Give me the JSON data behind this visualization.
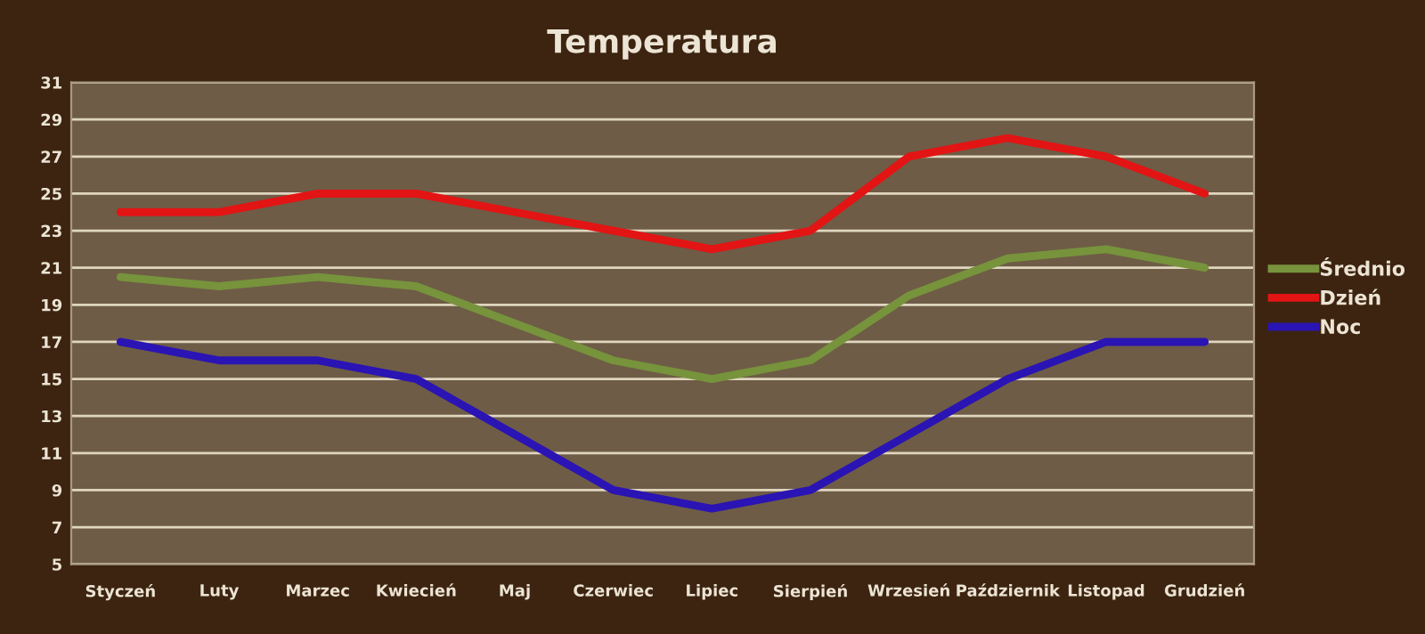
{
  "chart_data": {
    "type": "line",
    "title": "Temperatura",
    "categories": [
      "Styczeń",
      "Luty",
      "Marzec",
      "Kwiecień",
      "Maj",
      "Czerwiec",
      "Lipiec",
      "Sierpień",
      "Wrzesień",
      "Październik",
      "Listopad",
      "Grudzień"
    ],
    "series": [
      {
        "name": "Średnio",
        "color": "#77933c",
        "values": [
          20.5,
          20,
          20.5,
          20,
          18,
          16,
          15,
          16,
          19.5,
          21.5,
          22,
          21
        ]
      },
      {
        "name": "Dzień",
        "color": "#e31414",
        "values": [
          24,
          24,
          25,
          25,
          24,
          23,
          22,
          23,
          27,
          28,
          27,
          25
        ]
      },
      {
        "name": "Noc",
        "color": "#2a14b4",
        "values": [
          17,
          16,
          16,
          15,
          12,
          9,
          8,
          9,
          12,
          15,
          17,
          17
        ]
      }
    ],
    "ylim": [
      5,
      31
    ],
    "yticks": [
      5,
      7,
      9,
      11,
      13,
      15,
      17,
      19,
      21,
      23,
      25,
      27,
      29,
      31
    ],
    "grid": "y",
    "legend": "right",
    "marker": "none",
    "line_style": "solid"
  }
}
